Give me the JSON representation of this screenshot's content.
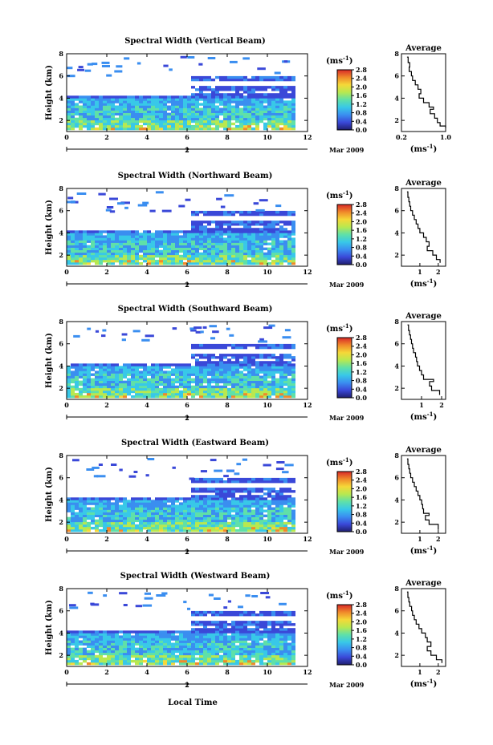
{
  "chart_data": [
    {
      "type": "heatmap",
      "title": "Spectral Width (Vertical Beam)",
      "ylabel": "Height (km)",
      "xlim": [
        0,
        12
      ],
      "ylim": [
        1,
        8
      ],
      "xticks": [
        0,
        2,
        4,
        6,
        8,
        10,
        12
      ],
      "yticks": [
        2,
        4,
        6,
        8
      ],
      "date_label": "2",
      "month_label": "Mar 2009",
      "colorbar": {
        "label": "(ms",
        "label_exp": "-1",
        "label_close": ")",
        "range": [
          0,
          2.8
        ],
        "ticks": [
          0.0,
          0.4,
          0.8,
          1.2,
          1.6,
          2.0,
          2.4,
          2.8
        ],
        "tick_labels": [
          "0.0",
          "0.4",
          "0.8",
          "1.2",
          "1.6",
          "2.0",
          "2.4",
          "2.8"
        ]
      },
      "profile": {
        "title": "Average",
        "xlabel": "(ms",
        "xlabel_exp": "-1",
        "xlabel_close": ")",
        "xlim": [
          0.2,
          1.0
        ],
        "xticks": [
          0.2,
          1.0
        ],
        "xtick_labels": [
          "0.2",
          "1.0"
        ],
        "ylim": [
          1,
          8
        ],
        "yticks": [
          2,
          4,
          6,
          8
        ],
        "points": [
          [
            0.3,
            7.7
          ],
          [
            0.32,
            7.2
          ],
          [
            0.35,
            6.8
          ],
          [
            0.34,
            6.4
          ],
          [
            0.38,
            6.0
          ],
          [
            0.4,
            5.6
          ],
          [
            0.45,
            5.2
          ],
          [
            0.5,
            4.8
          ],
          [
            0.55,
            4.4
          ],
          [
            0.52,
            4.0
          ],
          [
            0.6,
            3.6
          ],
          [
            0.7,
            3.2
          ],
          [
            0.78,
            3.0
          ],
          [
            0.72,
            2.6
          ],
          [
            0.8,
            2.2
          ],
          [
            0.85,
            1.8
          ],
          [
            0.9,
            1.5
          ],
          [
            1.0,
            1.3
          ]
        ]
      }
    },
    {
      "type": "heatmap",
      "title": "Spectral Width (Northward Beam)",
      "ylabel": "Height (km)",
      "xlim": [
        0,
        12
      ],
      "ylim": [
        1,
        8
      ],
      "xticks": [
        0,
        2,
        4,
        6,
        8,
        10,
        12
      ],
      "yticks": [
        2,
        4,
        6,
        8
      ],
      "date_label": "2",
      "month_label": "Mar 2009",
      "colorbar": {
        "label": "(ms",
        "label_exp": "-1",
        "label_close": ")",
        "range": [
          0,
          2.8
        ],
        "ticks": [
          0.0,
          0.4,
          0.8,
          1.2,
          1.6,
          2.0,
          2.4,
          2.8
        ],
        "tick_labels": [
          "0.0",
          "0.4",
          "0.8",
          "1.2",
          "1.6",
          "2.0",
          "2.4",
          "2.8"
        ]
      },
      "profile": {
        "title": "Average",
        "xlabel": "(ms",
        "xlabel_exp": "-1",
        "xlabel_close": ")",
        "xlim": [
          0,
          2.4
        ],
        "xticks": [
          1,
          2
        ],
        "xtick_labels": [
          "1",
          "2"
        ],
        "ylim": [
          1,
          8
        ],
        "yticks": [
          2,
          4,
          6,
          8
        ],
        "points": [
          [
            0.3,
            7.7
          ],
          [
            0.35,
            7.2
          ],
          [
            0.4,
            6.8
          ],
          [
            0.45,
            6.4
          ],
          [
            0.5,
            6.0
          ],
          [
            0.6,
            5.6
          ],
          [
            0.7,
            5.2
          ],
          [
            0.8,
            4.8
          ],
          [
            0.9,
            4.4
          ],
          [
            1.0,
            4.0
          ],
          [
            1.2,
            3.6
          ],
          [
            1.35,
            3.2
          ],
          [
            1.5,
            2.8
          ],
          [
            1.4,
            2.4
          ],
          [
            1.7,
            2.0
          ],
          [
            1.9,
            1.6
          ],
          [
            2.1,
            1.3
          ]
        ]
      }
    },
    {
      "type": "heatmap",
      "title": "Spectral Width (Southward Beam)",
      "ylabel": "Height (km)",
      "xlim": [
        0,
        12
      ],
      "ylim": [
        1,
        8
      ],
      "xticks": [
        0,
        2,
        4,
        6,
        8,
        10,
        12
      ],
      "yticks": [
        2,
        4,
        6,
        8
      ],
      "date_label": "2",
      "month_label": "Mar 2009",
      "colorbar": {
        "label": "(ms",
        "label_exp": "-1",
        "label_close": ")",
        "range": [
          0,
          2.8
        ],
        "ticks": [
          0.0,
          0.4,
          0.8,
          1.2,
          1.6,
          2.0,
          2.4,
          2.8
        ],
        "tick_labels": [
          "0.0",
          "0.4",
          "0.8",
          "1.2",
          "1.6",
          "2.0",
          "2.4",
          "2.8"
        ]
      },
      "profile": {
        "title": "Average",
        "xlabel": "(ms",
        "xlabel_exp": "-1",
        "xlabel_close": ")",
        "xlim": [
          0,
          2.2
        ],
        "xticks": [
          1,
          2
        ],
        "xtick_labels": [
          "1",
          "2"
        ],
        "ylim": [
          1,
          8
        ],
        "yticks": [
          2,
          4,
          6,
          8
        ],
        "points": [
          [
            0.3,
            7.7
          ],
          [
            0.35,
            7.2
          ],
          [
            0.4,
            6.8
          ],
          [
            0.45,
            6.4
          ],
          [
            0.5,
            6.0
          ],
          [
            0.55,
            5.6
          ],
          [
            0.6,
            5.2
          ],
          [
            0.7,
            4.8
          ],
          [
            0.75,
            4.4
          ],
          [
            0.8,
            4.0
          ],
          [
            0.9,
            3.6
          ],
          [
            1.0,
            3.2
          ],
          [
            1.1,
            2.8
          ],
          [
            1.6,
            2.6
          ],
          [
            1.4,
            2.2
          ],
          [
            1.5,
            1.8
          ],
          [
            1.9,
            1.4
          ]
        ]
      }
    },
    {
      "type": "heatmap",
      "title": "Spectral Width (Eastward Beam)",
      "ylabel": "Height (km)",
      "xlim": [
        0,
        12
      ],
      "ylim": [
        1,
        8
      ],
      "xticks": [
        0,
        2,
        4,
        6,
        8,
        10,
        12
      ],
      "yticks": [
        2,
        4,
        6,
        8
      ],
      "date_label": "2",
      "month_label": "Mar 2009",
      "colorbar": {
        "label": "(ms",
        "label_exp": "-1",
        "label_close": ")",
        "range": [
          0,
          2.8
        ],
        "ticks": [
          0.0,
          0.4,
          0.8,
          1.2,
          1.6,
          2.0,
          2.4,
          2.8
        ],
        "tick_labels": [
          "0.0",
          "0.4",
          "0.8",
          "1.2",
          "1.6",
          "2.0",
          "2.4",
          "2.8"
        ]
      },
      "profile": {
        "title": "Average",
        "xlabel": "(ms",
        "xlabel_exp": "-1",
        "xlabel_close": ")",
        "xlim": [
          0,
          2.4
        ],
        "xticks": [
          1,
          2
        ],
        "xtick_labels": [
          "1",
          "2"
        ],
        "ylim": [
          1,
          8
        ],
        "yticks": [
          2,
          4,
          6,
          8
        ],
        "points": [
          [
            0.3,
            7.7
          ],
          [
            0.35,
            7.2
          ],
          [
            0.4,
            6.8
          ],
          [
            0.45,
            6.4
          ],
          [
            0.5,
            6.0
          ],
          [
            0.6,
            5.6
          ],
          [
            0.7,
            5.2
          ],
          [
            0.8,
            4.8
          ],
          [
            0.9,
            4.4
          ],
          [
            1.0,
            4.0
          ],
          [
            1.1,
            3.6
          ],
          [
            1.15,
            3.2
          ],
          [
            1.2,
            2.8
          ],
          [
            1.5,
            2.6
          ],
          [
            1.3,
            2.2
          ],
          [
            1.5,
            1.8
          ],
          [
            2.0,
            1.3
          ]
        ]
      }
    },
    {
      "type": "heatmap",
      "title": "Spectral Width (Westward Beam)",
      "ylabel": "Height (km)",
      "xlim": [
        0,
        12
      ],
      "ylim": [
        1,
        8
      ],
      "xticks": [
        0,
        2,
        4,
        6,
        8,
        10,
        12
      ],
      "yticks": [
        2,
        4,
        6,
        8
      ],
      "date_label": "2",
      "month_label": "Mar 2009",
      "colorbar": {
        "label": "(ms",
        "label_exp": "-1",
        "label_close": ")",
        "range": [
          0,
          2.8
        ],
        "ticks": [
          0.0,
          0.4,
          0.8,
          1.2,
          1.6,
          2.0,
          2.4,
          2.8
        ],
        "tick_labels": [
          "0.0",
          "0.4",
          "0.8",
          "1.2",
          "1.6",
          "2.0",
          "2.4",
          "2.8"
        ]
      },
      "profile": {
        "title": "Average",
        "xlabel": "(ms",
        "xlabel_exp": "-1",
        "xlabel_close": ")",
        "xlim": [
          0,
          2.4
        ],
        "xticks": [
          1,
          2
        ],
        "xtick_labels": [
          "1",
          "2"
        ],
        "ylim": [
          1,
          8
        ],
        "yticks": [
          2,
          4,
          6,
          8
        ],
        "points": [
          [
            0.3,
            7.7
          ],
          [
            0.35,
            7.2
          ],
          [
            0.4,
            6.8
          ],
          [
            0.45,
            6.4
          ],
          [
            0.55,
            6.0
          ],
          [
            0.6,
            5.6
          ],
          [
            0.7,
            5.2
          ],
          [
            0.8,
            4.8
          ],
          [
            0.95,
            4.4
          ],
          [
            1.1,
            4.0
          ],
          [
            1.3,
            3.6
          ],
          [
            1.4,
            3.2
          ],
          [
            1.6,
            2.8
          ],
          [
            1.4,
            2.4
          ],
          [
            1.6,
            2.0
          ],
          [
            1.9,
            1.6
          ],
          [
            2.2,
            1.3
          ]
        ]
      }
    }
  ],
  "bottom_xlabel": "Local Time",
  "colorbar_colors": [
    "#1e1e6e",
    "#3a48d8",
    "#3a8ef0",
    "#38c8e8",
    "#5fe0a8",
    "#b8e850",
    "#f5d838",
    "#f08a2a",
    "#d82828"
  ]
}
